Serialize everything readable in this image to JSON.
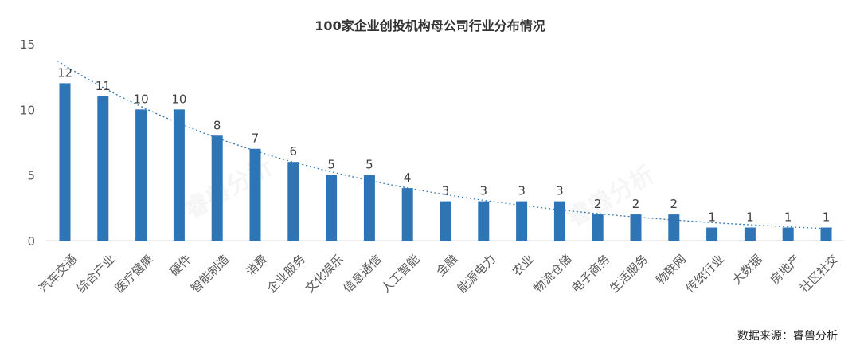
{
  "chart_data": {
    "type": "bar",
    "title": "100家企业创投机构母公司行业分布情况",
    "categories": [
      "汽车交通",
      "综合产业",
      "医疗健康",
      "硬件",
      "智能制造",
      "消费",
      "企业服务",
      "文化娱乐",
      "信息通信",
      "人工智能",
      "金融",
      "能源电力",
      "农业",
      "物流仓储",
      "电子商务",
      "生活服务",
      "物联网",
      "传统行业",
      "大数据",
      "房地产",
      "社区社交"
    ],
    "values": [
      12,
      11,
      10,
      10,
      8,
      7,
      6,
      5,
      5,
      4,
      3,
      3,
      3,
      3,
      2,
      2,
      2,
      1,
      1,
      1,
      1
    ],
    "ylim": [
      0,
      15
    ],
    "yticks": [
      0,
      5,
      10,
      15
    ],
    "xlabel": "",
    "ylabel": "",
    "trendline": "dotted",
    "grid": false,
    "bar_color": "#2e75b6",
    "trend_color": "#2e75b6"
  },
  "source": "数据来源：睿兽分析",
  "watermark": "睿兽分析"
}
